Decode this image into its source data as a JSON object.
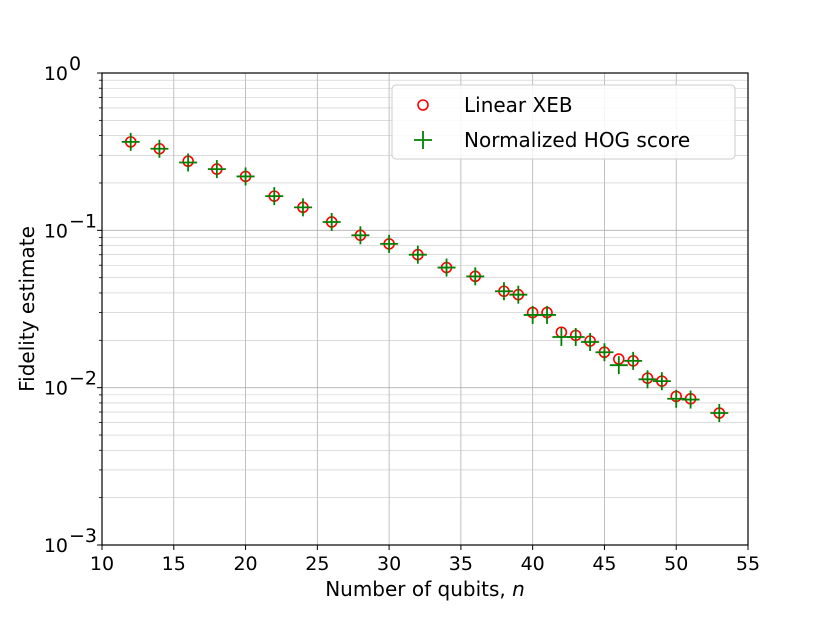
{
  "chart_data": {
    "type": "scatter",
    "title": "",
    "xlabel": "Number of qubits, ",
    "xlabel_var": "n",
    "ylabel": "Fidelity estimate",
    "xlim": [
      10,
      55
    ],
    "ylim": [
      0.001,
      1
    ],
    "yscale": "log",
    "grid": true,
    "legend_position": "top-right",
    "x_ticks": [
      10,
      15,
      20,
      25,
      30,
      35,
      40,
      45,
      50,
      55
    ],
    "y_ticks": [
      {
        "value": 0.001,
        "base": "10",
        "exp": "−3"
      },
      {
        "value": 0.01,
        "base": "10",
        "exp": "−2"
      },
      {
        "value": 0.1,
        "base": "10",
        "exp": "−1"
      },
      {
        "value": 1,
        "base": "10",
        "exp": "0"
      }
    ],
    "series": [
      {
        "name": "Linear XEB",
        "marker": "circle",
        "color": "#ff0000",
        "x": [
          12,
          14,
          16,
          18,
          20,
          22,
          24,
          26,
          28,
          30,
          32,
          34,
          36,
          38,
          39,
          40,
          41,
          42,
          43,
          44,
          45,
          46,
          47,
          48,
          49,
          50,
          51,
          53
        ],
        "y": [
          0.365,
          0.33,
          0.275,
          0.245,
          0.22,
          0.165,
          0.14,
          0.113,
          0.093,
          0.082,
          0.07,
          0.058,
          0.051,
          0.041,
          0.039,
          0.03,
          0.03,
          0.0225,
          0.0215,
          0.0198,
          0.0168,
          0.0152,
          0.0148,
          0.0115,
          0.011,
          0.0088,
          0.0085,
          0.0069
        ]
      },
      {
        "name": "Normalized HOG score",
        "marker": "plus",
        "color": "#008000",
        "x": [
          12,
          14,
          16,
          18,
          20,
          22,
          24,
          26,
          28,
          30,
          32,
          34,
          36,
          38,
          39,
          40,
          41,
          42,
          43,
          44,
          45,
          46,
          47,
          48,
          49,
          50,
          51,
          53
        ],
        "y": [
          0.365,
          0.33,
          0.27,
          0.245,
          0.22,
          0.165,
          0.14,
          0.113,
          0.093,
          0.082,
          0.07,
          0.058,
          0.051,
          0.041,
          0.039,
          0.029,
          0.029,
          0.021,
          0.021,
          0.0195,
          0.0168,
          0.0139,
          0.0148,
          0.0113,
          0.011,
          0.0085,
          0.0084,
          0.0069
        ]
      }
    ]
  }
}
